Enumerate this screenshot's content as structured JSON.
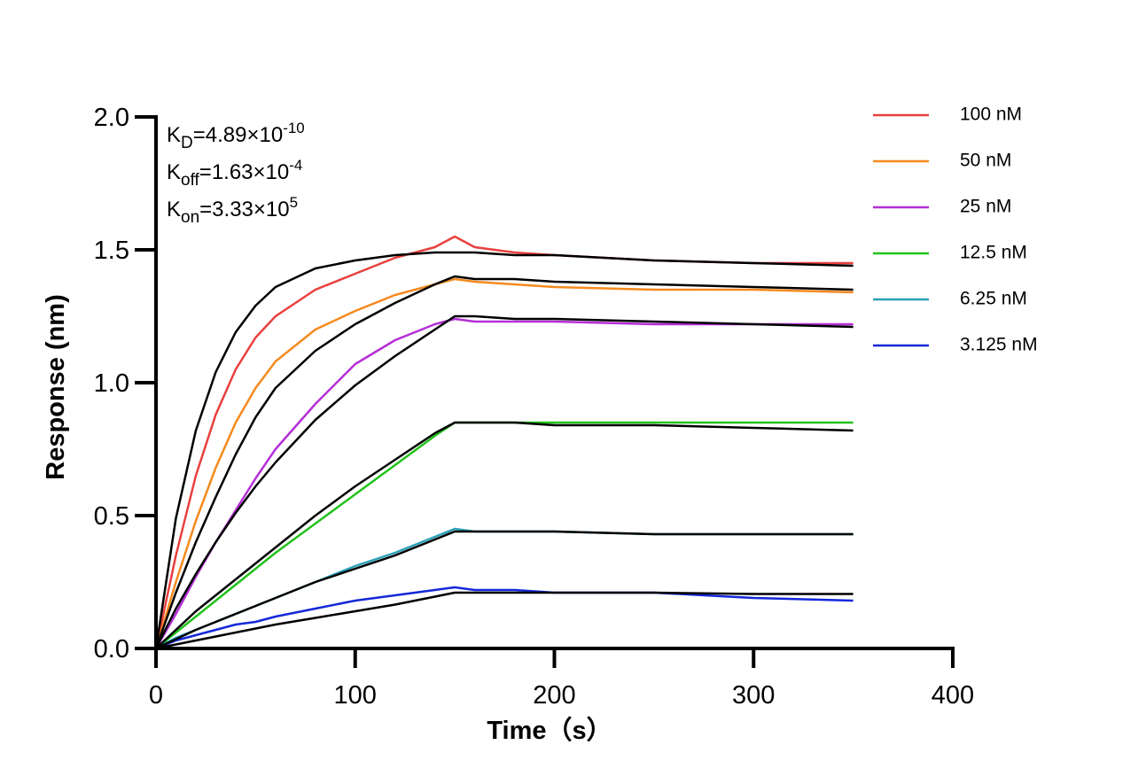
{
  "chart_data": {
    "type": "line",
    "xlabel": "Time（s）",
    "ylabel": "Response (nm)",
    "x": [
      0,
      10,
      20,
      30,
      40,
      50,
      60,
      80,
      100,
      120,
      140,
      150,
      160,
      180,
      200,
      250,
      300,
      350
    ],
    "xlim": [
      0,
      400
    ],
    "xticks": [
      0,
      100,
      200,
      300,
      400
    ],
    "ylim": [
      0,
      2
    ],
    "yticks": [
      {
        "value": 0,
        "label": "0.0"
      },
      0.5,
      {
        "value": 1,
        "label": "1.0"
      },
      1.5,
      {
        "value": 2,
        "label": "2.0"
      }
    ],
    "legend_position": "right",
    "annotations": [
      {
        "symbol": "K",
        "subscript": "D",
        "text": "=4.89×10",
        "exponent": "-10"
      },
      {
        "symbol": "K",
        "subscript": "off",
        "text": "=1.63×10",
        "exponent": "-4"
      },
      {
        "symbol": "K",
        "subscript": "on",
        "text": "=3.33×10",
        "exponent": "5"
      }
    ],
    "series": [
      {
        "name": "100 nM",
        "color": "#e8403f",
        "values": [
          0,
          0.35,
          0.65,
          0.88,
          1.05,
          1.17,
          1.25,
          1.35,
          1.41,
          1.47,
          1.51,
          1.55,
          1.51,
          1.49,
          1.48,
          1.46,
          1.45,
          1.45
        ]
      },
      {
        "name": "50 nM",
        "color": "#f58a1f",
        "values": [
          0,
          0.25,
          0.48,
          0.68,
          0.85,
          0.98,
          1.08,
          1.2,
          1.27,
          1.33,
          1.37,
          1.39,
          1.38,
          1.37,
          1.36,
          1.35,
          1.35,
          1.34
        ]
      },
      {
        "name": "25 nM",
        "color": "#b52fd6",
        "values": [
          0,
          0.13,
          0.27,
          0.4,
          0.52,
          0.64,
          0.75,
          0.92,
          1.07,
          1.16,
          1.22,
          1.24,
          1.23,
          1.23,
          1.23,
          1.22,
          1.22,
          1.22
        ]
      },
      {
        "name": "12.5 nM",
        "color": "#22c21c",
        "values": [
          0,
          0.06,
          0.12,
          0.18,
          0.24,
          0.3,
          0.36,
          0.47,
          0.58,
          0.69,
          0.8,
          0.85,
          0.85,
          0.85,
          0.85,
          0.85,
          0.85,
          0.85
        ]
      },
      {
        "name": "6.25 nM",
        "color": "#2aa0b8",
        "values": [
          0,
          0.04,
          0.07,
          0.1,
          0.13,
          0.16,
          0.19,
          0.25,
          0.31,
          0.36,
          0.42,
          0.45,
          0.44,
          0.44,
          0.44,
          0.43,
          0.43,
          0.43
        ]
      },
      {
        "name": "3.125 nM",
        "color": "#1428d8",
        "values": [
          0,
          0.03,
          0.05,
          0.07,
          0.09,
          0.1,
          0.12,
          0.15,
          0.18,
          0.2,
          0.22,
          0.23,
          0.22,
          0.22,
          0.21,
          0.21,
          0.19,
          0.18
        ]
      }
    ],
    "fits": [
      {
        "color": "#000000",
        "values": [
          0,
          0.49,
          0.82,
          1.04,
          1.19,
          1.29,
          1.36,
          1.43,
          1.46,
          1.48,
          1.49,
          1.49,
          1.49,
          1.48,
          1.48,
          1.46,
          1.45,
          1.44
        ]
      },
      {
        "color": "#000000",
        "values": [
          0,
          0.21,
          0.4,
          0.57,
          0.73,
          0.87,
          0.98,
          1.12,
          1.22,
          1.3,
          1.37,
          1.4,
          1.39,
          1.39,
          1.38,
          1.37,
          1.36,
          1.35
        ]
      },
      {
        "color": "#000000",
        "values": [
          0,
          0.15,
          0.28,
          0.4,
          0.51,
          0.61,
          0.7,
          0.86,
          0.99,
          1.1,
          1.2,
          1.25,
          1.25,
          1.24,
          1.24,
          1.23,
          1.22,
          1.21
        ]
      },
      {
        "color": "#000000",
        "values": [
          0,
          0.07,
          0.14,
          0.2,
          0.26,
          0.32,
          0.38,
          0.5,
          0.61,
          0.71,
          0.81,
          0.85,
          0.85,
          0.85,
          0.84,
          0.84,
          0.83,
          0.82
        ]
      },
      {
        "color": "#000000",
        "values": [
          0,
          0.035,
          0.07,
          0.1,
          0.13,
          0.16,
          0.19,
          0.25,
          0.3,
          0.35,
          0.41,
          0.44,
          0.44,
          0.44,
          0.44,
          0.43,
          0.43,
          0.43
        ]
      },
      {
        "color": "#000000",
        "values": [
          0,
          0.015,
          0.03,
          0.045,
          0.06,
          0.075,
          0.09,
          0.115,
          0.14,
          0.165,
          0.195,
          0.21,
          0.21,
          0.21,
          0.21,
          0.21,
          0.205,
          0.205
        ]
      }
    ]
  }
}
